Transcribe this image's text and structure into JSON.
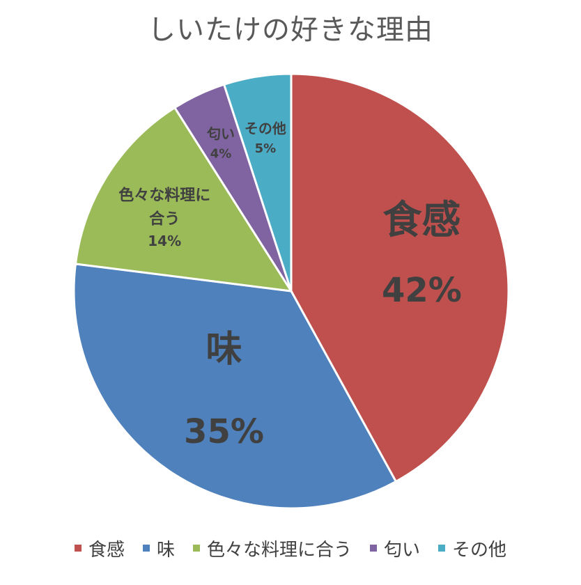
{
  "chart_data": {
    "type": "pie",
    "title": "しいたけの好きな理由",
    "legend_position": "bottom",
    "slices": [
      {
        "label": "食感",
        "label_lines": [
          "食感"
        ],
        "value": 42,
        "percent_label": "42%",
        "color": "#C0504D"
      },
      {
        "label": "味",
        "label_lines": [
          "味"
        ],
        "value": 35,
        "percent_label": "35%",
        "color": "#4F81BD"
      },
      {
        "label": "色々な料理に合う",
        "label_lines": [
          "色々な料理に",
          "合う"
        ],
        "value": 14,
        "percent_label": "14%",
        "color": "#9BBB59"
      },
      {
        "label": "匂い",
        "label_lines": [
          "匂い"
        ],
        "value": 4,
        "percent_label": "4%",
        "color": "#8064A2"
      },
      {
        "label": "その他",
        "label_lines": [
          "その他"
        ],
        "value": 5,
        "percent_label": "5%",
        "color": "#4BACC6"
      }
    ]
  }
}
